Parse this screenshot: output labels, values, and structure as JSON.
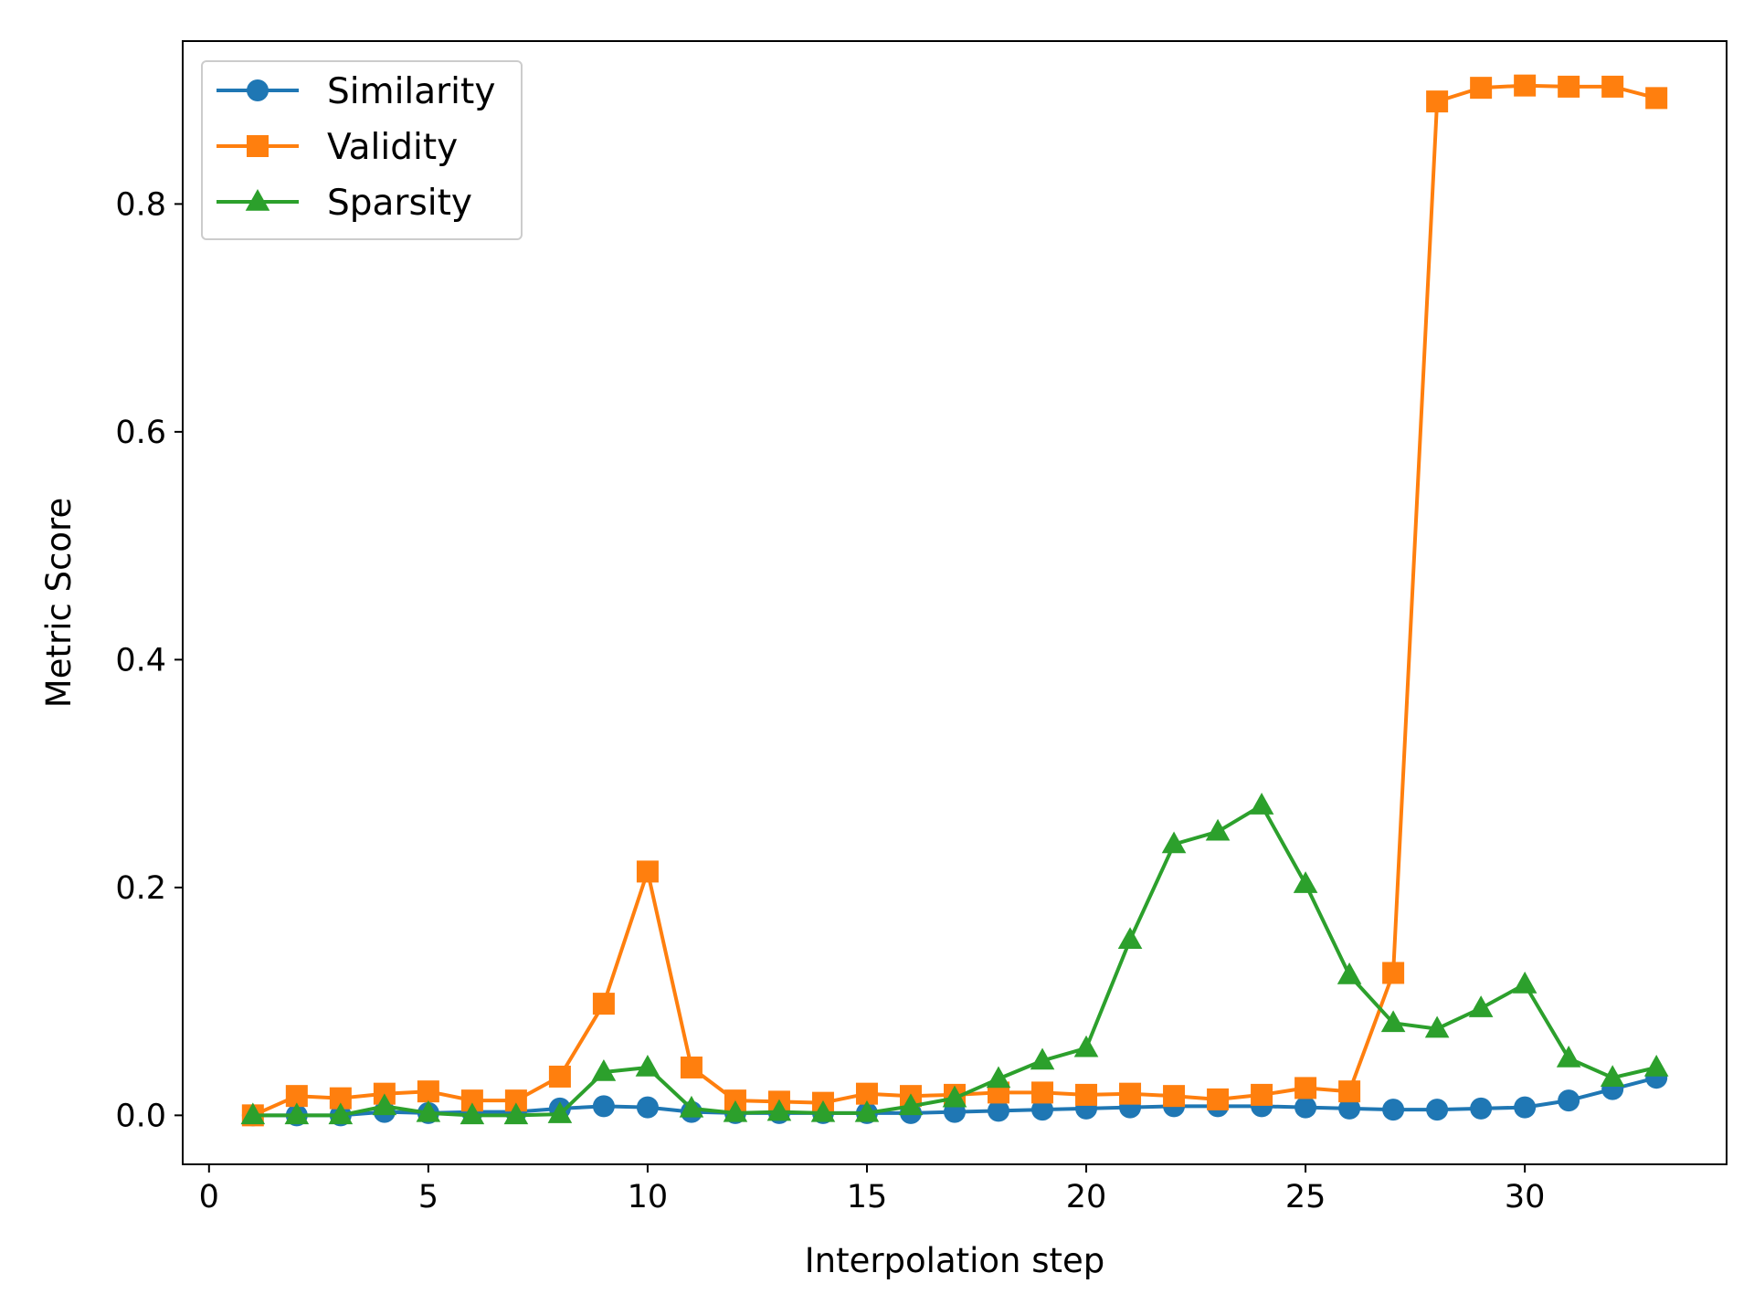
{
  "chart_data": {
    "type": "line",
    "title": "",
    "xlabel": "Interpolation step",
    "ylabel": "Metric Score",
    "xlim": [
      -0.6,
      34.6
    ],
    "ylim": [
      -0.043,
      0.943
    ],
    "xticks": [
      0,
      5,
      10,
      15,
      20,
      25,
      30
    ],
    "yticks": [
      0.0,
      0.2,
      0.4,
      0.6,
      0.8
    ],
    "ytick_labels": [
      "0.0",
      "0.2",
      "0.4",
      "0.6",
      "0.8"
    ],
    "grid": false,
    "legend_position": "top-left",
    "x": [
      1,
      2,
      3,
      4,
      5,
      6,
      7,
      8,
      9,
      10,
      11,
      12,
      13,
      14,
      15,
      16,
      17,
      18,
      19,
      20,
      21,
      22,
      23,
      24,
      25,
      26,
      27,
      28,
      29,
      30,
      31,
      32,
      33
    ],
    "series": [
      {
        "name": "Similarity",
        "color": "#1f77b4",
        "marker": "circle",
        "values": [
          0.0,
          0.0,
          0.0,
          0.003,
          0.002,
          0.003,
          0.003,
          0.006,
          0.008,
          0.007,
          0.003,
          0.002,
          0.002,
          0.002,
          0.002,
          0.002,
          0.003,
          0.004,
          0.005,
          0.006,
          0.007,
          0.008,
          0.008,
          0.008,
          0.007,
          0.006,
          0.005,
          0.005,
          0.006,
          0.007,
          0.013,
          0.023,
          0.033
        ]
      },
      {
        "name": "Validity",
        "color": "#ff7f0e",
        "marker": "square",
        "values": [
          0.0,
          0.017,
          0.015,
          0.019,
          0.021,
          0.013,
          0.013,
          0.034,
          0.098,
          0.214,
          0.042,
          0.013,
          0.012,
          0.011,
          0.019,
          0.017,
          0.018,
          0.02,
          0.02,
          0.018,
          0.019,
          0.017,
          0.014,
          0.018,
          0.024,
          0.021,
          0.125,
          0.89,
          0.902,
          0.904,
          0.903,
          0.903,
          0.893
        ]
      },
      {
        "name": "Sparsity",
        "color": "#2ca02c",
        "marker": "triangle",
        "values": [
          0.0,
          0.0,
          0.0,
          0.008,
          0.002,
          0.0,
          0.0,
          0.001,
          0.038,
          0.042,
          0.006,
          0.002,
          0.003,
          0.002,
          0.002,
          0.008,
          0.015,
          0.032,
          0.048,
          0.059,
          0.154,
          0.238,
          0.249,
          0.272,
          0.203,
          0.123,
          0.081,
          0.076,
          0.094,
          0.115,
          0.05,
          0.033,
          0.042
        ]
      }
    ]
  }
}
